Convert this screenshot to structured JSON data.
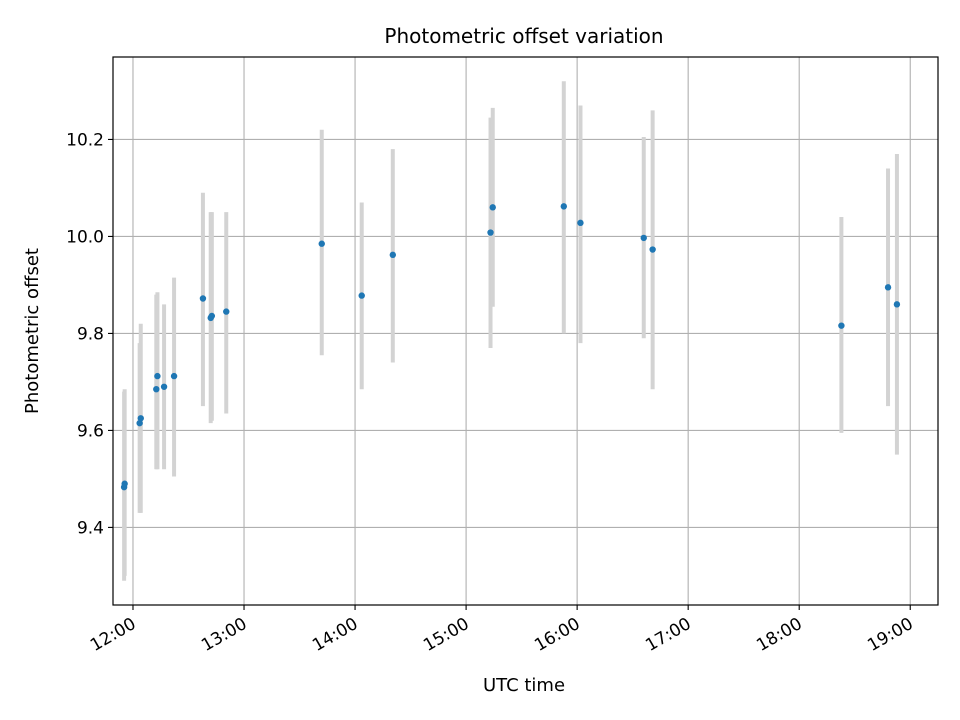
{
  "chart_data": {
    "type": "scatter",
    "title": "Photometric offset variation",
    "xlabel": "UTC time",
    "ylabel": "Photometric offset",
    "x_unit": "UTC time of day (hours)",
    "xlim": [
      11.82,
      19.25
    ],
    "ylim": [
      9.24,
      10.37
    ],
    "xticks": [
      12,
      13,
      14,
      15,
      16,
      17,
      18,
      19
    ],
    "xtick_labels": [
      "12:00",
      "13:00",
      "14:00",
      "15:00",
      "16:00",
      "17:00",
      "18:00",
      "19:00"
    ],
    "yticks": [
      9.4,
      9.6,
      9.8,
      10.0,
      10.2
    ],
    "ytick_labels": [
      "9.4",
      "9.6",
      "9.8",
      "10.0",
      "10.2"
    ],
    "grid": true,
    "colors": {
      "points": "#1f77b4",
      "error_bars": "#d3d3d3",
      "grid": "#b0b0b0"
    },
    "series": [
      {
        "points": [
          {
            "x": 11.92,
            "y": 9.483,
            "ylow": 9.29,
            "yhigh": 9.68
          },
          {
            "x": 11.925,
            "y": 9.49,
            "ylow": 9.3,
            "yhigh": 9.685
          },
          {
            "x": 12.06,
            "y": 9.615,
            "ylow": 9.43,
            "yhigh": 9.78
          },
          {
            "x": 12.07,
            "y": 9.625,
            "ylow": 9.43,
            "yhigh": 9.82
          },
          {
            "x": 12.21,
            "y": 9.685,
            "ylow": 9.52,
            "yhigh": 9.88
          },
          {
            "x": 12.22,
            "y": 9.712,
            "ylow": 9.52,
            "yhigh": 9.885
          },
          {
            "x": 12.28,
            "y": 9.69,
            "ylow": 9.52,
            "yhigh": 9.86
          },
          {
            "x": 12.37,
            "y": 9.712,
            "ylow": 9.505,
            "yhigh": 9.915
          },
          {
            "x": 12.63,
            "y": 9.872,
            "ylow": 9.65,
            "yhigh": 10.09
          },
          {
            "x": 12.7,
            "y": 9.832,
            "ylow": 9.615,
            "yhigh": 10.05
          },
          {
            "x": 12.71,
            "y": 9.836,
            "ylow": 9.62,
            "yhigh": 10.05
          },
          {
            "x": 12.84,
            "y": 9.845,
            "ylow": 9.635,
            "yhigh": 10.05
          },
          {
            "x": 13.7,
            "y": 9.985,
            "ylow": 9.755,
            "yhigh": 10.22
          },
          {
            "x": 14.06,
            "y": 9.878,
            "ylow": 9.685,
            "yhigh": 10.07
          },
          {
            "x": 14.34,
            "y": 9.962,
            "ylow": 9.74,
            "yhigh": 10.18
          },
          {
            "x": 15.22,
            "y": 10.008,
            "ylow": 9.77,
            "yhigh": 10.245
          },
          {
            "x": 15.24,
            "y": 10.06,
            "ylow": 9.855,
            "yhigh": 10.265
          },
          {
            "x": 15.88,
            "y": 10.062,
            "ylow": 9.8,
            "yhigh": 10.32
          },
          {
            "x": 16.03,
            "y": 10.028,
            "ylow": 9.78,
            "yhigh": 10.27
          },
          {
            "x": 16.6,
            "y": 9.997,
            "ylow": 9.79,
            "yhigh": 10.205
          },
          {
            "x": 16.68,
            "y": 9.973,
            "ylow": 9.685,
            "yhigh": 10.26
          },
          {
            "x": 18.38,
            "y": 9.816,
            "ylow": 9.595,
            "yhigh": 10.04
          },
          {
            "x": 18.8,
            "y": 9.895,
            "ylow": 9.65,
            "yhigh": 10.14
          },
          {
            "x": 18.88,
            "y": 9.86,
            "ylow": 9.55,
            "yhigh": 10.17
          }
        ]
      }
    ]
  }
}
